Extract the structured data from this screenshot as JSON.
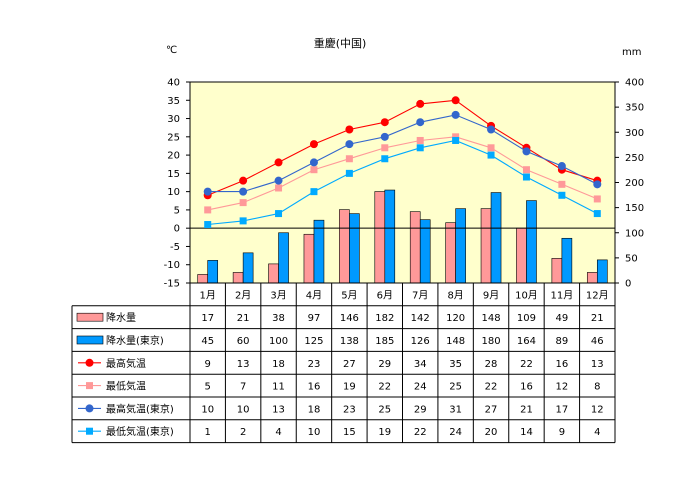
{
  "chart_data": {
    "type": "bar",
    "title": "重慶(中国)",
    "left_unit": "℃",
    "right_unit": "mm",
    "ylim_left": [
      -15,
      40
    ],
    "ylim_right": [
      0,
      400
    ],
    "left_ticks": [
      "40",
      "35",
      "30",
      "25",
      "20",
      "15",
      "10",
      "5",
      "0",
      "-5",
      "-10",
      "-15"
    ],
    "right_ticks": [
      "400",
      "350",
      "300",
      "250",
      "200",
      "150",
      "100",
      "50",
      "0"
    ],
    "categories": [
      "1月",
      "2月",
      "3月",
      "4月",
      "5月",
      "6月",
      "7月",
      "8月",
      "9月",
      "10月",
      "11月",
      "12月"
    ],
    "grid": false,
    "legend": "table-left",
    "series": [
      {
        "name": "降水量",
        "kind": "bar",
        "axis": "right",
        "color": "#ff9999",
        "values": [
          17,
          21,
          38,
          97,
          146,
          182,
          142,
          120,
          148,
          109,
          49,
          21
        ]
      },
      {
        "name": "降水量(東京)",
        "kind": "bar",
        "axis": "right",
        "color": "#0099ff",
        "values": [
          45,
          60,
          100,
          125,
          138,
          185,
          126,
          148,
          180,
          164,
          89,
          46
        ]
      },
      {
        "name": "最高気温",
        "kind": "line",
        "marker": "circle",
        "axis": "left",
        "color": "#ff0000",
        "values": [
          9,
          13,
          18,
          23,
          27,
          29,
          34,
          35,
          28,
          22,
          16,
          13
        ]
      },
      {
        "name": "最低気温",
        "kind": "line",
        "marker": "square",
        "axis": "left",
        "color": "#ff9999",
        "values": [
          5,
          7,
          11,
          16,
          19,
          22,
          24,
          25,
          22,
          16,
          12,
          8
        ]
      },
      {
        "name": "最高気温(東京)",
        "kind": "line",
        "marker": "circle",
        "axis": "left",
        "color": "#3366cc",
        "values": [
          10,
          10,
          13,
          18,
          23,
          25,
          29,
          31,
          27,
          21,
          17,
          12
        ]
      },
      {
        "name": "最低気温(東京)",
        "kind": "line",
        "marker": "square",
        "axis": "left",
        "color": "#00aaff",
        "values": [
          1,
          2,
          4,
          10,
          15,
          19,
          22,
          24,
          20,
          14,
          9,
          4
        ]
      }
    ],
    "colors": {
      "plot_background": "#ffffcc"
    }
  }
}
